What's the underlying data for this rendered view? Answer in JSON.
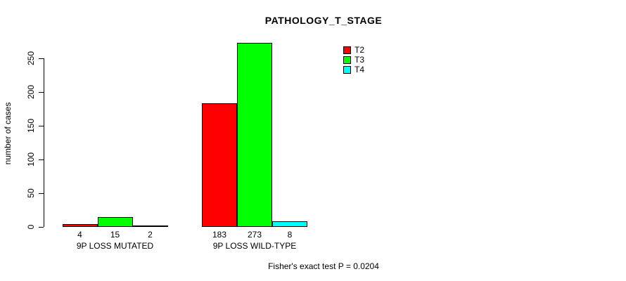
{
  "title": "PATHOLOGY_T_STAGE",
  "footer_note": "Fisher's exact test P = 0.0204",
  "chart_data": {
    "type": "bar",
    "title": "PATHOLOGY_T_STAGE",
    "xlabel": "",
    "ylabel": "number of cases",
    "categories": [
      "9P LOSS MUTATED",
      "9P LOSS WILD-TYPE"
    ],
    "series": [
      {
        "name": "T2",
        "color": "#ff0000",
        "values": [
          4,
          183
        ]
      },
      {
        "name": "T3",
        "color": "#00ff00",
        "values": [
          15,
          273
        ]
      },
      {
        "name": "T4",
        "color": "#00ffff",
        "values": [
          2,
          8
        ]
      }
    ],
    "ylim": [
      0,
      250
    ],
    "yticks": [
      0,
      50,
      100,
      150,
      200,
      250
    ],
    "bar_value_labels": [
      [
        "4",
        "15",
        "2"
      ],
      [
        "183",
        "273",
        "8"
      ]
    ],
    "grid": false,
    "legend_position": "top-right",
    "annotation": "Fisher's exact test P = 0.0204"
  }
}
